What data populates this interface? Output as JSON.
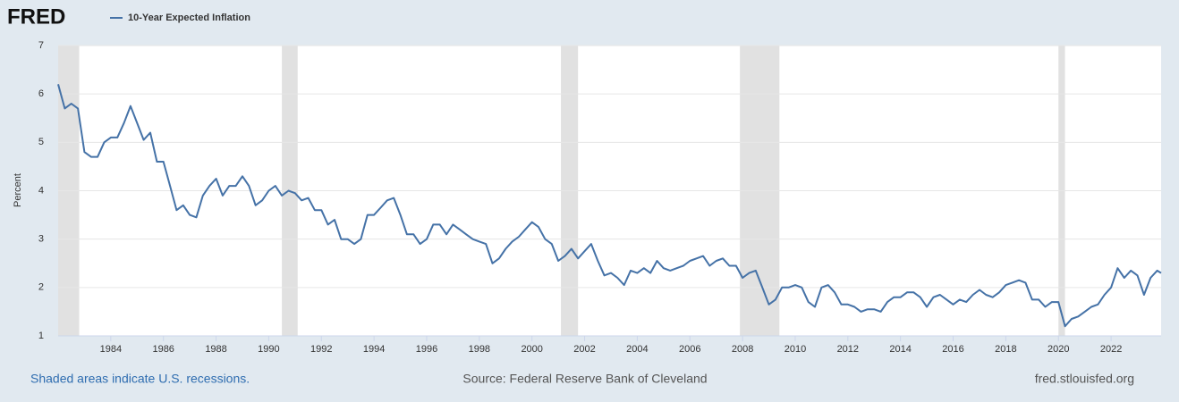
{
  "chart_data": {
    "type": "line",
    "logo": "FRED",
    "y_label": "Percent",
    "recession_note": "Shaded areas indicate U.S. recessions.",
    "source": "Source: Federal Reserve Bank of Cleveland",
    "url": "fred.stlouisfed.org",
    "xlim": [
      1982.0,
      2023.9
    ],
    "xticks": [
      1984,
      1986,
      1988,
      1990,
      1992,
      1994,
      1996,
      1998,
      2000,
      2002,
      2004,
      2006,
      2008,
      2010,
      2012,
      2014,
      2016,
      2018,
      2020,
      2022
    ],
    "ylim": [
      1,
      7
    ],
    "yticks": [
      1,
      2,
      3,
      4,
      5,
      6,
      7
    ],
    "grid": true,
    "recessions": [
      [
        1982.0,
        1982.8
      ],
      [
        1990.5,
        1991.1
      ],
      [
        2001.1,
        2001.75
      ],
      [
        2007.9,
        2009.4
      ],
      [
        2020.0,
        2020.25
      ]
    ],
    "x": [
      1982.0,
      1982.25,
      1982.5,
      1982.75,
      1983.0,
      1983.25,
      1983.5,
      1983.75,
      1984.0,
      1984.25,
      1984.5,
      1984.75,
      1985.0,
      1985.25,
      1985.5,
      1985.75,
      1986.0,
      1986.25,
      1986.5,
      1986.75,
      1987.0,
      1987.25,
      1987.5,
      1987.75,
      1988.0,
      1988.25,
      1988.5,
      1988.75,
      1989.0,
      1989.25,
      1989.5,
      1989.75,
      1990.0,
      1990.25,
      1990.5,
      1990.75,
      1991.0,
      1991.25,
      1991.5,
      1991.75,
      1992.0,
      1992.25,
      1992.5,
      1992.75,
      1993.0,
      1993.25,
      1993.5,
      1993.75,
      1994.0,
      1994.25,
      1994.5,
      1994.75,
      1995.0,
      1995.25,
      1995.5,
      1995.75,
      1996.0,
      1996.25,
      1996.5,
      1996.75,
      1997.0,
      1997.25,
      1997.5,
      1997.75,
      1998.0,
      1998.25,
      1998.5,
      1998.75,
      1999.0,
      1999.25,
      1999.5,
      1999.75,
      2000.0,
      2000.25,
      2000.5,
      2000.75,
      2001.0,
      2001.25,
      2001.5,
      2001.75,
      2002.0,
      2002.25,
      2002.5,
      2002.75,
      2003.0,
      2003.25,
      2003.5,
      2003.75,
      2004.0,
      2004.25,
      2004.5,
      2004.75,
      2005.0,
      2005.25,
      2005.5,
      2005.75,
      2006.0,
      2006.25,
      2006.5,
      2006.75,
      2007.0,
      2007.25,
      2007.5,
      2007.75,
      2008.0,
      2008.25,
      2008.5,
      2008.75,
      2009.0,
      2009.25,
      2009.5,
      2009.75,
      2010.0,
      2010.25,
      2010.5,
      2010.75,
      2011.0,
      2011.25,
      2011.5,
      2011.75,
      2012.0,
      2012.25,
      2012.5,
      2012.75,
      2013.0,
      2013.25,
      2013.5,
      2013.75,
      2014.0,
      2014.25,
      2014.5,
      2014.75,
      2015.0,
      2015.25,
      2015.5,
      2015.75,
      2016.0,
      2016.25,
      2016.5,
      2016.75,
      2017.0,
      2017.25,
      2017.5,
      2017.75,
      2018.0,
      2018.25,
      2018.5,
      2018.75,
      2019.0,
      2019.25,
      2019.5,
      2019.75,
      2020.0,
      2020.25,
      2020.5,
      2020.75,
      2021.0,
      2021.25,
      2021.5,
      2021.75,
      2022.0,
      2022.25,
      2022.5,
      2022.75,
      2023.0,
      2023.25,
      2023.5,
      2023.75,
      2023.9
    ],
    "series": [
      {
        "name": "10-Year Expected Inflation",
        "color": "#4572a7",
        "values": [
          6.2,
          5.7,
          5.8,
          5.7,
          4.8,
          4.7,
          4.7,
          5.0,
          5.1,
          5.1,
          5.4,
          5.75,
          5.4,
          5.05,
          5.2,
          4.6,
          4.6,
          4.1,
          3.6,
          3.7,
          3.5,
          3.45,
          3.9,
          4.1,
          4.25,
          3.9,
          4.1,
          4.1,
          4.3,
          4.1,
          3.7,
          3.8,
          4.0,
          4.1,
          3.9,
          4.0,
          3.95,
          3.8,
          3.85,
          3.6,
          3.6,
          3.3,
          3.4,
          3.0,
          3.0,
          2.9,
          3.0,
          3.5,
          3.5,
          3.65,
          3.8,
          3.85,
          3.5,
          3.1,
          3.1,
          2.9,
          3.0,
          3.3,
          3.3,
          3.1,
          3.3,
          3.2,
          3.1,
          3.0,
          2.95,
          2.9,
          2.5,
          2.6,
          2.8,
          2.95,
          3.05,
          3.2,
          3.35,
          3.25,
          3.0,
          2.9,
          2.55,
          2.65,
          2.8,
          2.6,
          2.75,
          2.9,
          2.55,
          2.25,
          2.3,
          2.2,
          2.05,
          2.35,
          2.3,
          2.4,
          2.3,
          2.55,
          2.4,
          2.35,
          2.4,
          2.45,
          2.55,
          2.6,
          2.65,
          2.45,
          2.55,
          2.6,
          2.45,
          2.45,
          2.2,
          2.3,
          2.35,
          2.0,
          1.65,
          1.75,
          2.0,
          2.0,
          2.05,
          2.0,
          1.7,
          1.6,
          2.0,
          2.05,
          1.9,
          1.65,
          1.65,
          1.6,
          1.5,
          1.55,
          1.55,
          1.5,
          1.7,
          1.8,
          1.8,
          1.9,
          1.9,
          1.8,
          1.6,
          1.8,
          1.85,
          1.75,
          1.65,
          1.75,
          1.7,
          1.85,
          1.95,
          1.85,
          1.8,
          1.9,
          2.05,
          2.1,
          2.15,
          2.1,
          1.75,
          1.75,
          1.6,
          1.7,
          1.7,
          1.2,
          1.35,
          1.4,
          1.5,
          1.6,
          1.65,
          1.85,
          2.0,
          2.4,
          2.2,
          2.35,
          2.25,
          1.85,
          2.2,
          2.35,
          2.3
        ]
      }
    ]
  }
}
